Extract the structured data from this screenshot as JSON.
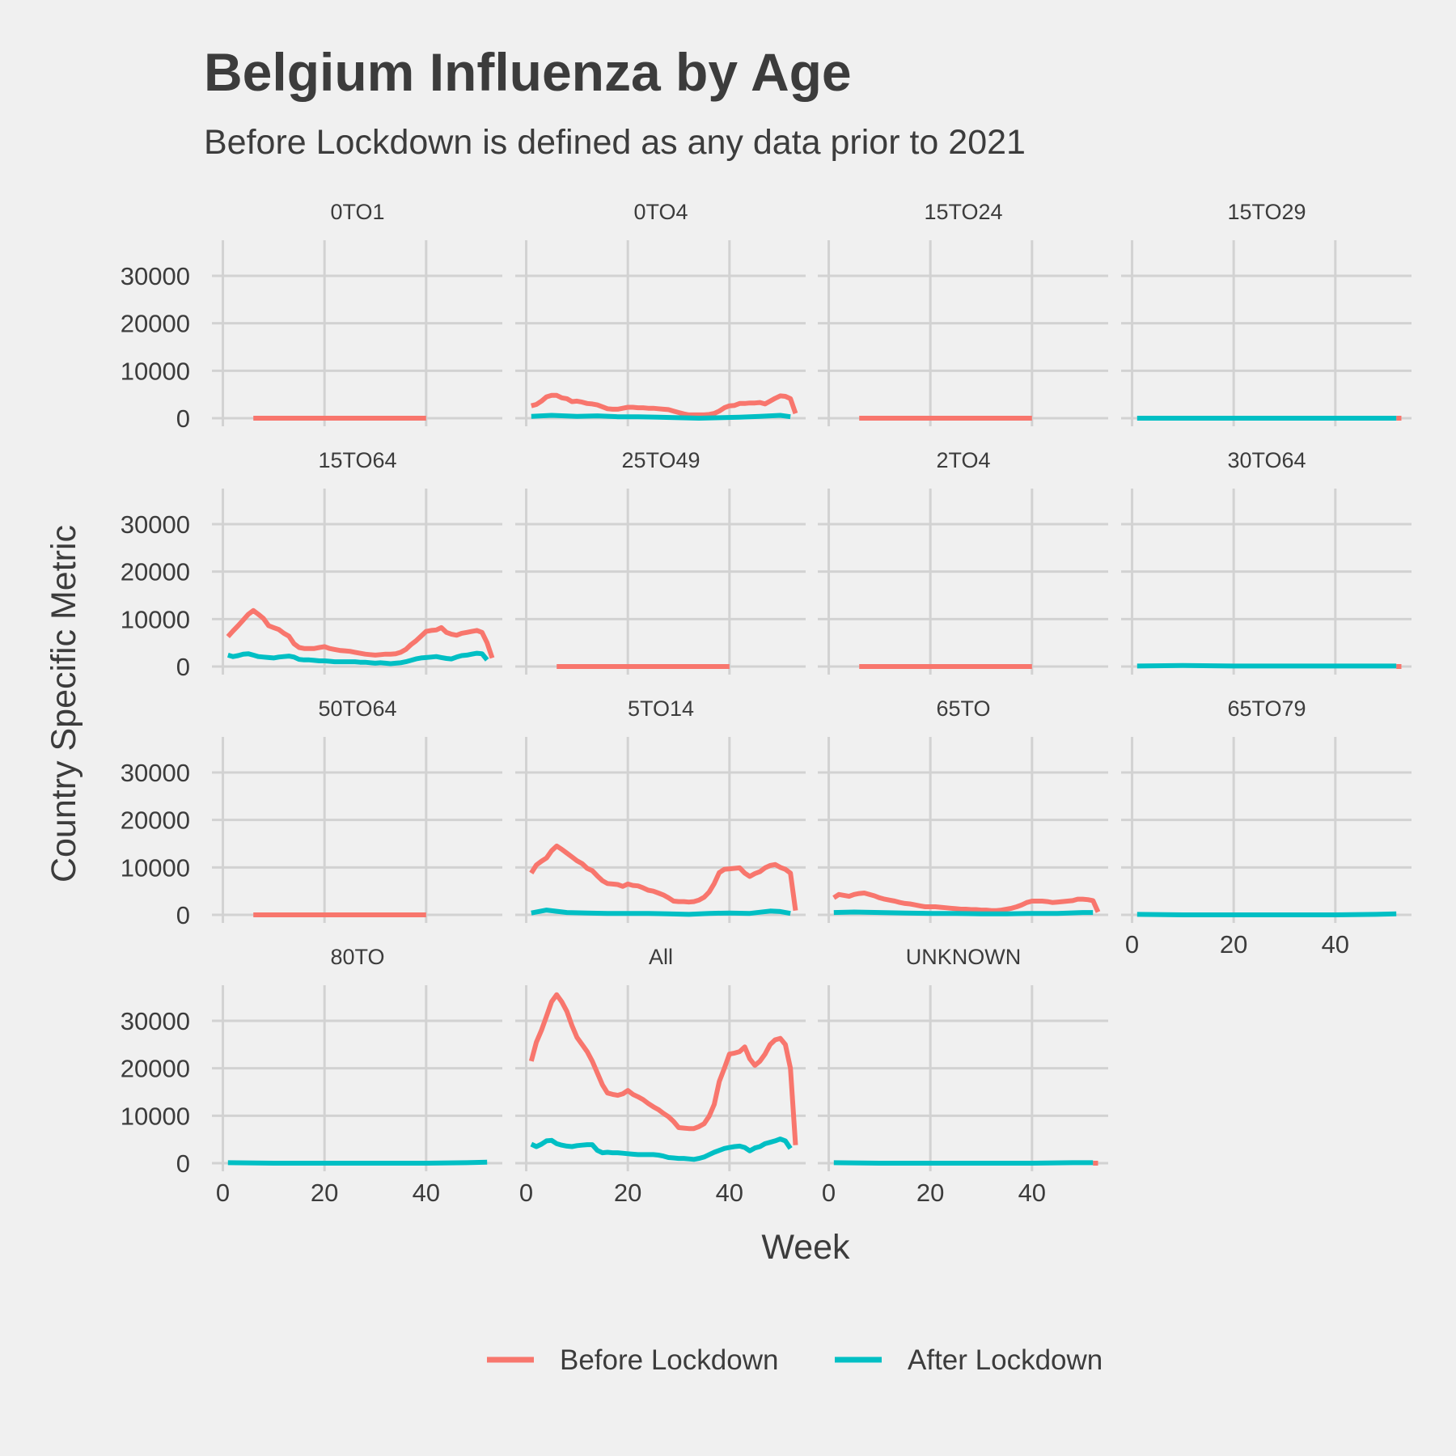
{
  "title": "Belgium Influenza by Age",
  "subtitle": "Before Lockdown is defined as any data prior to 2021",
  "colors": {
    "background": "#f0f0f0",
    "before": "#f8766d",
    "after": "#00bfc4",
    "grid": "#d2d2d2",
    "text": "#3c3c3c"
  },
  "chart_data": {
    "type": "line",
    "title": "Belgium Influenza by Age",
    "subtitle": "Before Lockdown is defined as any data prior to 2021",
    "xlabel": "Week",
    "ylabel": "Country Specific Metric",
    "xlim": [
      0,
      53
    ],
    "ylim": [
      0,
      35000
    ],
    "x_ticks": [
      0,
      20,
      40
    ],
    "y_ticks": [
      0,
      10000,
      20000,
      30000
    ],
    "grid": true,
    "legend_position": "bottom",
    "legend": [
      "Before Lockdown",
      "After Lockdown"
    ],
    "series_names": [
      "Before Lockdown",
      "After Lockdown"
    ],
    "panels": [
      {
        "label": "0TO1",
        "before": {
          "x": [
            6,
            40
          ],
          "y": [
            0,
            0
          ]
        },
        "after": null
      },
      {
        "label": "0TO4",
        "before": {
          "x": [
            1,
            2,
            3,
            4,
            5,
            6,
            7,
            8,
            9,
            10,
            11,
            12,
            13,
            14,
            15,
            16,
            17,
            18,
            19,
            20,
            21,
            22,
            23,
            24,
            25,
            26,
            27,
            28,
            29,
            30,
            31,
            32,
            33,
            34,
            35,
            36,
            37,
            38,
            39,
            40,
            41,
            42,
            43,
            44,
            45,
            46,
            47,
            48,
            49,
            50,
            51,
            52,
            53
          ],
          "y": [
            2600,
            2900,
            3600,
            4500,
            4800,
            4800,
            4300,
            4100,
            3500,
            3600,
            3400,
            3100,
            3000,
            2800,
            2400,
            2000,
            1900,
            1900,
            2100,
            2300,
            2300,
            2200,
            2200,
            2100,
            2100,
            2000,
            1900,
            1800,
            1500,
            1200,
            900,
            700,
            700,
            700,
            700,
            800,
            1000,
            1500,
            2200,
            2600,
            2700,
            3100,
            3100,
            3200,
            3200,
            3300,
            3000,
            3600,
            4200,
            4700,
            4600,
            4100,
            1000
          ]
        },
        "after": {
          "x": [
            1,
            5,
            10,
            14,
            18,
            22,
            26,
            30,
            34,
            38,
            42,
            46,
            50,
            52
          ],
          "y": [
            400,
            600,
            400,
            500,
            300,
            300,
            200,
            100,
            0,
            100,
            200,
            400,
            600,
            300
          ]
        }
      },
      {
        "label": "15TO24",
        "before": {
          "x": [
            6,
            40
          ],
          "y": [
            0,
            0
          ]
        },
        "after": null
      },
      {
        "label": "15TO29",
        "before": {
          "x": [
            52,
            53
          ],
          "y": [
            0,
            0
          ]
        },
        "after": {
          "x": [
            1,
            52
          ],
          "y": [
            0,
            0
          ]
        }
      },
      {
        "label": "15TO64",
        "before": {
          "x": [
            1,
            2,
            3,
            4,
            5,
            6,
            7,
            8,
            9,
            10,
            11,
            12,
            13,
            14,
            15,
            16,
            17,
            18,
            19,
            20,
            21,
            22,
            23,
            24,
            25,
            26,
            27,
            28,
            29,
            30,
            31,
            32,
            33,
            34,
            35,
            36,
            37,
            38,
            39,
            40,
            41,
            42,
            43,
            44,
            45,
            46,
            47,
            48,
            49,
            50,
            51,
            52,
            53
          ],
          "y": [
            6300,
            7500,
            8600,
            9800,
            11000,
            11800,
            11000,
            10100,
            8600,
            8200,
            7800,
            7000,
            6400,
            4800,
            4000,
            3800,
            3800,
            3800,
            4000,
            4200,
            3800,
            3600,
            3400,
            3300,
            3200,
            3000,
            2800,
            2600,
            2500,
            2400,
            2500,
            2600,
            2600,
            2700,
            3000,
            3600,
            4600,
            5400,
            6400,
            7400,
            7600,
            7700,
            8200,
            7200,
            6800,
            6600,
            7000,
            7200,
            7400,
            7600,
            7200,
            5000,
            1800
          ]
        },
        "after": {
          "x": [
            1,
            2,
            3,
            4,
            5,
            6,
            7,
            8,
            9,
            10,
            11,
            12,
            13,
            14,
            15,
            16,
            17,
            18,
            19,
            20,
            21,
            22,
            23,
            24,
            25,
            26,
            27,
            28,
            29,
            30,
            31,
            32,
            33,
            34,
            35,
            36,
            37,
            38,
            39,
            40,
            41,
            42,
            43,
            44,
            45,
            46,
            47,
            48,
            49,
            50,
            51,
            52
          ],
          "y": [
            2400,
            2100,
            2300,
            2600,
            2700,
            2400,
            2100,
            2000,
            1900,
            1800,
            2000,
            2100,
            2200,
            2000,
            1500,
            1400,
            1400,
            1300,
            1200,
            1200,
            1100,
            1000,
            1000,
            1000,
            1000,
            1000,
            900,
            900,
            800,
            700,
            800,
            700,
            600,
            700,
            800,
            1000,
            1300,
            1600,
            1800,
            1900,
            2000,
            2100,
            1900,
            1700,
            1600,
            2000,
            2300,
            2400,
            2600,
            2800,
            2700,
            1400
          ]
        }
      },
      {
        "label": "25TO49",
        "before": {
          "x": [
            6,
            40
          ],
          "y": [
            0,
            0
          ]
        },
        "after": null
      },
      {
        "label": "2TO4",
        "before": {
          "x": [
            6,
            40
          ],
          "y": [
            0,
            0
          ]
        },
        "after": null
      },
      {
        "label": "30TO64",
        "before": {
          "x": [
            52,
            53
          ],
          "y": [
            0,
            0
          ]
        },
        "after": {
          "x": [
            1,
            10,
            20,
            30,
            40,
            52
          ],
          "y": [
            100,
            200,
            100,
            100,
            100,
            100
          ]
        }
      },
      {
        "label": "50TO64",
        "before": {
          "x": [
            6,
            40
          ],
          "y": [
            0,
            0
          ]
        },
        "after": null
      },
      {
        "label": "5TO14",
        "before": {
          "x": [
            1,
            2,
            3,
            4,
            5,
            6,
            7,
            8,
            9,
            10,
            11,
            12,
            13,
            14,
            15,
            16,
            17,
            18,
            19,
            20,
            21,
            22,
            23,
            24,
            25,
            26,
            27,
            28,
            29,
            30,
            31,
            32,
            33,
            34,
            35,
            36,
            37,
            38,
            39,
            40,
            41,
            42,
            43,
            44,
            45,
            46,
            47,
            48,
            49,
            50,
            51,
            52,
            53
          ],
          "y": [
            8800,
            10500,
            11300,
            12000,
            13500,
            14500,
            13800,
            13000,
            12200,
            11400,
            10800,
            9800,
            9300,
            8200,
            7200,
            6600,
            6500,
            6400,
            6000,
            6500,
            6200,
            6100,
            5700,
            5200,
            5000,
            4600,
            4200,
            3600,
            2900,
            2800,
            2800,
            2700,
            2800,
            3100,
            3700,
            4800,
            6600,
            8900,
            9600,
            9700,
            9800,
            9900,
            8800,
            8100,
            8700,
            9100,
            9900,
            10400,
            10600,
            10000,
            9600,
            8800,
            900
          ]
        },
        "after": {
          "x": [
            1,
            4,
            8,
            12,
            16,
            20,
            24,
            28,
            32,
            36,
            40,
            44,
            48,
            50,
            52
          ],
          "y": [
            400,
            1000,
            500,
            400,
            300,
            300,
            300,
            200,
            100,
            300,
            400,
            300,
            800,
            700,
            300
          ]
        }
      },
      {
        "label": "65TO",
        "before": {
          "x": [
            1,
            2,
            3,
            4,
            5,
            6,
            7,
            8,
            9,
            10,
            11,
            12,
            13,
            14,
            15,
            16,
            17,
            18,
            19,
            20,
            21,
            22,
            23,
            24,
            25,
            26,
            27,
            28,
            29,
            30,
            31,
            32,
            33,
            34,
            35,
            36,
            37,
            38,
            39,
            40,
            41,
            42,
            43,
            44,
            45,
            46,
            47,
            48,
            49,
            50,
            51,
            52,
            53
          ],
          "y": [
            3600,
            4300,
            4100,
            3900,
            4300,
            4500,
            4600,
            4300,
            4000,
            3600,
            3300,
            3100,
            2900,
            2600,
            2400,
            2300,
            2100,
            1900,
            1700,
            1700,
            1700,
            1600,
            1500,
            1400,
            1300,
            1200,
            1200,
            1100,
            1100,
            1000,
            1000,
            900,
            900,
            1000,
            1200,
            1400,
            1700,
            2100,
            2600,
            2900,
            2900,
            2900,
            2800,
            2600,
            2700,
            2800,
            2900,
            3000,
            3300,
            3300,
            3200,
            3000,
            600
          ]
        },
        "after": {
          "x": [
            1,
            5,
            10,
            15,
            20,
            25,
            30,
            35,
            40,
            45,
            50,
            52
          ],
          "y": [
            500,
            600,
            500,
            400,
            300,
            300,
            200,
            200,
            300,
            300,
            500,
            500
          ]
        }
      },
      {
        "label": "65TO79",
        "before": null,
        "after": {
          "x": [
            1,
            10,
            20,
            30,
            40,
            48,
            52
          ],
          "y": [
            100,
            0,
            0,
            0,
            0,
            100,
            200
          ]
        }
      },
      {
        "label": "80TO",
        "before": null,
        "after": {
          "x": [
            1,
            10,
            20,
            30,
            40,
            48,
            52
          ],
          "y": [
            100,
            0,
            0,
            0,
            0,
            100,
            200
          ]
        }
      },
      {
        "label": "All",
        "before": {
          "x": [
            1,
            2,
            3,
            4,
            5,
            6,
            7,
            8,
            9,
            10,
            11,
            12,
            13,
            14,
            15,
            16,
            17,
            18,
            19,
            20,
            21,
            22,
            23,
            24,
            25,
            26,
            27,
            28,
            29,
            30,
            31,
            32,
            33,
            34,
            35,
            36,
            37,
            38,
            39,
            40,
            41,
            42,
            43,
            44,
            45,
            46,
            47,
            48,
            49,
            50,
            51,
            52,
            53
          ],
          "y": [
            21500,
            25500,
            28000,
            31000,
            34000,
            35500,
            34000,
            32000,
            29000,
            26500,
            25000,
            23500,
            21500,
            19000,
            16500,
            14800,
            14500,
            14300,
            14600,
            15300,
            14500,
            14000,
            13400,
            12600,
            11900,
            11300,
            10500,
            9800,
            8800,
            7500,
            7400,
            7300,
            7300,
            7700,
            8300,
            9900,
            12400,
            17200,
            20000,
            23000,
            23200,
            23500,
            24500,
            22000,
            20600,
            21500,
            23000,
            25000,
            26000,
            26300,
            25000,
            20000,
            3800
          ]
        },
        "after": {
          "x": [
            1,
            2,
            3,
            4,
            5,
            6,
            7,
            8,
            9,
            10,
            11,
            12,
            13,
            14,
            15,
            16,
            17,
            18,
            19,
            20,
            21,
            22,
            23,
            24,
            25,
            26,
            27,
            28,
            29,
            30,
            31,
            32,
            33,
            34,
            35,
            36,
            37,
            38,
            39,
            40,
            41,
            42,
            43,
            44,
            45,
            46,
            47,
            48,
            49,
            50,
            51,
            52
          ],
          "y": [
            4000,
            3500,
            4000,
            4700,
            4800,
            4100,
            3800,
            3600,
            3500,
            3700,
            3800,
            3900,
            3900,
            2700,
            2200,
            2300,
            2200,
            2200,
            2100,
            2000,
            1900,
            1800,
            1800,
            1800,
            1800,
            1700,
            1500,
            1200,
            1100,
            1000,
            1000,
            900,
            800,
            1000,
            1300,
            1800,
            2300,
            2700,
            3100,
            3300,
            3500,
            3600,
            3300,
            2600,
            3200,
            3500,
            4100,
            4400,
            4700,
            5100,
            4700,
            3100
          ]
        }
      },
      {
        "label": "UNKNOWN",
        "before": {
          "x": [
            52,
            53
          ],
          "y": [
            0,
            0
          ]
        },
        "after": {
          "x": [
            1,
            10,
            20,
            30,
            40,
            48,
            52
          ],
          "y": [
            100,
            0,
            0,
            0,
            0,
            100,
            100
          ]
        }
      }
    ]
  }
}
